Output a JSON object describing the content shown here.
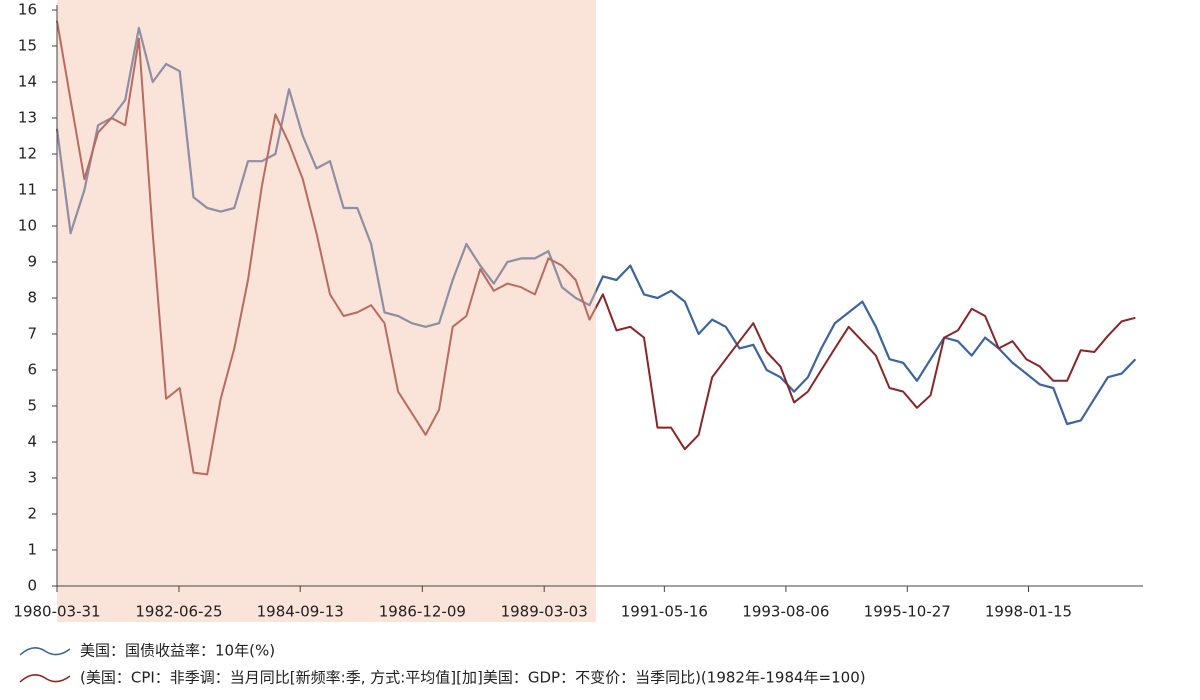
{
  "chart_data": {
    "type": "line",
    "x": [
      "1980-03-31",
      "1980-06-30",
      "1980-09-30",
      "1980-12-31",
      "1981-03-31",
      "1981-06-30",
      "1981-09-30",
      "1981-12-31",
      "1982-03-31",
      "1982-06-30",
      "1982-09-30",
      "1982-12-31",
      "1983-03-31",
      "1983-06-30",
      "1983-09-30",
      "1983-12-31",
      "1984-03-31",
      "1984-06-30",
      "1984-09-30",
      "1984-12-31",
      "1985-03-31",
      "1985-06-30",
      "1985-09-30",
      "1985-12-31",
      "1986-03-31",
      "1986-06-30",
      "1986-09-30",
      "1986-12-31",
      "1987-03-31",
      "1987-06-30",
      "1987-09-30",
      "1987-12-31",
      "1988-03-31",
      "1988-06-30",
      "1988-09-30",
      "1988-12-31",
      "1989-03-31",
      "1989-06-30",
      "1989-09-30",
      "1989-12-31",
      "1990-03-31",
      "1990-06-30",
      "1990-09-30",
      "1990-12-31",
      "1991-03-31",
      "1991-06-30",
      "1991-09-30",
      "1991-12-31",
      "1992-03-31",
      "1992-06-30",
      "1992-09-30",
      "1992-12-31",
      "1993-03-31",
      "1993-06-30",
      "1993-09-30",
      "1993-12-31",
      "1994-03-31",
      "1994-06-30",
      "1994-09-30",
      "1994-12-31",
      "1995-03-31",
      "1995-06-30",
      "1995-09-30",
      "1995-12-31",
      "1996-03-31",
      "1996-06-30",
      "1996-09-30",
      "1996-12-31",
      "1997-03-31",
      "1997-06-30",
      "1997-09-30",
      "1997-12-31",
      "1998-03-31",
      "1998-06-30",
      "1998-09-30",
      "1998-12-31",
      "1999-03-31",
      "1999-06-30",
      "1999-09-30",
      "1999-12-31"
    ],
    "series": [
      {
        "name": "美国：国债收益率：10年(%)",
        "color": "#3b64a0",
        "values": [
          12.7,
          9.8,
          11.0,
          12.8,
          13.0,
          13.5,
          15.5,
          14.0,
          14.5,
          14.3,
          10.8,
          10.5,
          10.4,
          10.5,
          11.8,
          11.8,
          12.0,
          13.8,
          12.5,
          11.6,
          11.8,
          10.5,
          10.5,
          9.5,
          7.6,
          7.5,
          7.3,
          7.2,
          7.3,
          8.5,
          9.5,
          8.9,
          8.4,
          9.0,
          9.1,
          9.1,
          9.3,
          8.3,
          8.0,
          7.8,
          8.6,
          8.5,
          8.9,
          8.1,
          8.0,
          8.2,
          7.9,
          7.0,
          7.4,
          7.2,
          6.6,
          6.7,
          6.0,
          5.8,
          5.4,
          5.8,
          6.6,
          7.3,
          7.6,
          7.9,
          7.2,
          6.3,
          6.2,
          5.7,
          6.3,
          6.9,
          6.8,
          6.4,
          6.9,
          6.6,
          6.2,
          5.9,
          5.6,
          5.5,
          4.5,
          4.6,
          5.2,
          5.8,
          5.9,
          6.3
        ]
      },
      {
        "name": "(美国：CPI：非季调：当月同比[新频率:季, 方式:平均值][加]美国：GDP：不变价：当季同比)(1982年-1984年=100)",
        "color": "#8b2525",
        "values": [
          15.7,
          13.5,
          11.3,
          12.6,
          13.0,
          12.8,
          15.2,
          9.8,
          5.2,
          5.5,
          3.15,
          3.1,
          5.2,
          6.6,
          8.5,
          11.1,
          13.1,
          12.3,
          11.3,
          9.8,
          8.1,
          7.5,
          7.6,
          7.8,
          7.3,
          5.4,
          4.8,
          4.2,
          4.9,
          7.2,
          7.5,
          8.8,
          8.2,
          8.4,
          8.3,
          8.1,
          9.1,
          8.9,
          8.5,
          7.4,
          8.1,
          7.1,
          7.2,
          6.9,
          4.4,
          4.4,
          3.8,
          4.2,
          5.8,
          6.3,
          6.8,
          7.3,
          6.5,
          6.1,
          5.1,
          5.4,
          6.0,
          6.6,
          7.2,
          6.8,
          6.4,
          5.5,
          5.4,
          4.95,
          5.3,
          6.9,
          7.1,
          7.7,
          7.5,
          6.6,
          6.8,
          6.3,
          6.1,
          5.7,
          5.7,
          6.55,
          6.5,
          6.95,
          7.35,
          7.45
        ]
      }
    ],
    "xlim": [
      "1980-03-31",
      "2000-02-20"
    ],
    "xticks": [
      "1980-03-31",
      "1982-06-25",
      "1984-09-13",
      "1986-12-09",
      "1989-03-03",
      "1991-05-16",
      "1993-08-06",
      "1995-10-27",
      "1998-01-15"
    ],
    "ylim": [
      0,
      16
    ],
    "yticks": [
      0,
      1,
      2,
      3,
      4,
      5,
      6,
      7,
      8,
      9,
      10,
      11,
      12,
      13,
      14,
      15,
      16
    ],
    "shade": {
      "range": [
        "1980-03-31",
        "1990-02-12"
      ],
      "color": "#f5c0a8"
    },
    "legend": "bottom-left"
  }
}
